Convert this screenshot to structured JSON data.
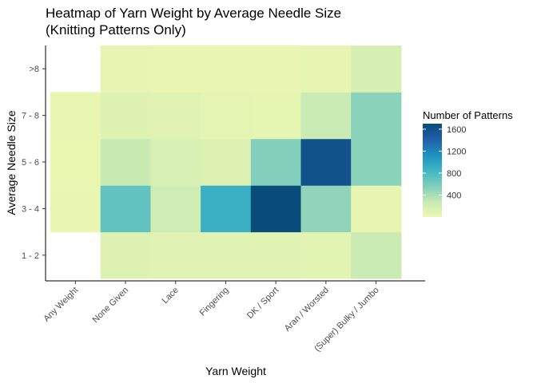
{
  "chart_data": {
    "type": "heatmap",
    "title": "Heatmap of Yarn Weight by Average Needle Size",
    "subtitle": "(Knitting Patterns Only)",
    "xlabel": "Yarn Weight",
    "ylabel": "Average Needle Size",
    "x_categories": [
      "Any Weight",
      "None Given",
      "Lace",
      "Fingering",
      "DK / Sport",
      "Aran / Worsted",
      "(Super) Bulky / Jumbo"
    ],
    "y_categories": [
      "1 - 2",
      "3 - 4",
      "5 - 6",
      "7 - 8",
      ">8"
    ],
    "values": [
      [
        null,
        120,
        100,
        90,
        90,
        85,
        250
      ],
      [
        30,
        700,
        230,
        900,
        1700,
        500,
        50
      ],
      [
        25,
        260,
        160,
        130,
        550,
        1600,
        520
      ],
      [
        30,
        110,
        90,
        70,
        60,
        250,
        520
      ],
      [
        null,
        50,
        40,
        35,
        30,
        55,
        170
      ]
    ],
    "legend": {
      "title": "Number of Patterns",
      "ticks": [
        400,
        800,
        1200,
        1600
      ],
      "min": 0,
      "max": 1700,
      "colors": [
        "#edf8b1",
        "#c7e9b4",
        "#7fcdbb",
        "#41b6c4",
        "#1d91c0",
        "#225ea8",
        "#084c7a"
      ],
      "placement": "right"
    },
    "grid": false
  }
}
